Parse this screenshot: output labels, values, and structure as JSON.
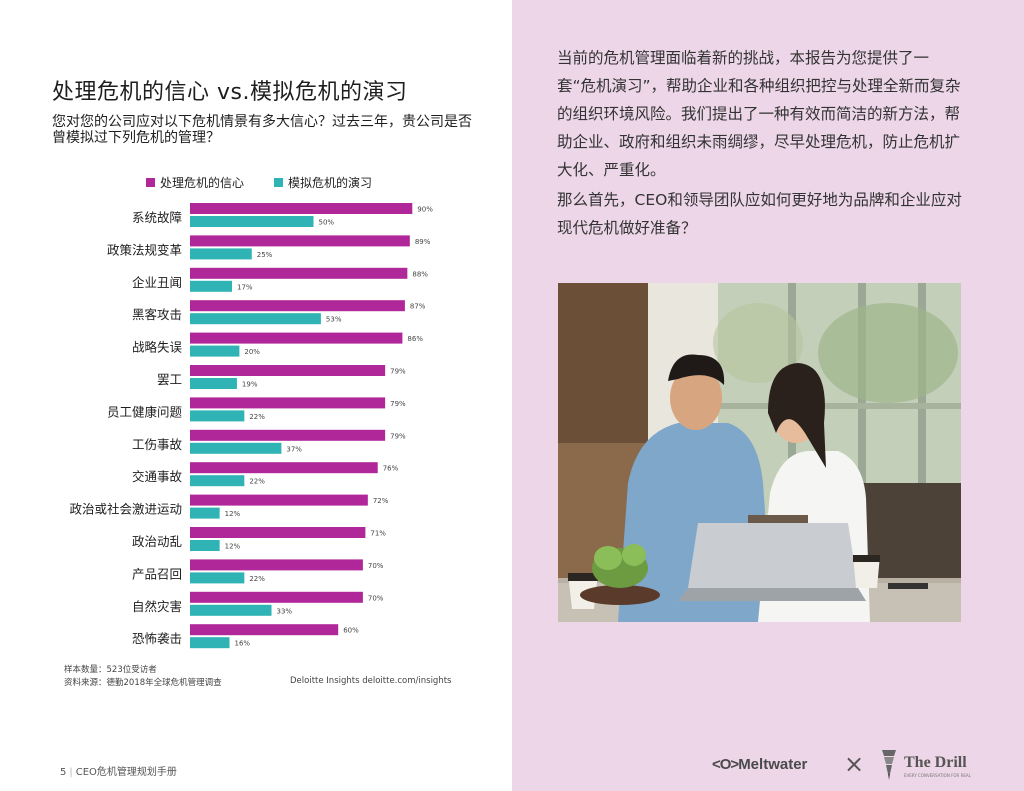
{
  "left_page": {
    "title": "处理危机的信心 vs.模拟危机的演习",
    "subtitle": "您对您的公司应对以下危机情景有多大信心？过去三年，贵公司是否曾模拟过下列危机的管理？",
    "sample_note": "样本数量：523位受访者",
    "source_note": "资料来源：德勤2018年全球危机管理调查",
    "source_right": "Deloitte Insights  deloitte.com/insights",
    "page_number": "5",
    "page_title": "CEO危机管理规划手册"
  },
  "right_page": {
    "paragraph1": "当前的危机管理面临着新的挑战，本报告为您提供了一套“危机演习”，帮助企业和各种组织把控与处理全新而复杂的组织环境风险。我们提出了一种有效而简洁的新方法，帮助企业、政府和组织未雨绸缪，尽早处理危机，防止危机扩大化、严重化。",
    "paragraph2": "那么首先，CEO和领导团队应如何更好地为品牌和企业应对现代危机做好准备？",
    "logo_meltwater": "Meltwater",
    "logo_times": "×",
    "logo_drill": "The Drill",
    "logo_drill_sub": "EVERY CONVERSATION FOR REAL"
  },
  "colors": {
    "series1": "#b0279a",
    "series2": "#2fb3b5",
    "right_bg": "#ecd6e8"
  },
  "chart_data": {
    "type": "bar",
    "orientation": "horizontal",
    "categories": [
      "系统故障",
      "政策法规变革",
      "企业丑闻",
      "黑客攻击",
      "战略失误",
      "罢工",
      "员工健康问题",
      "工伤事故",
      "交通事故",
      "政治或社会激进运动",
      "政治动乱",
      "产品召回",
      "自然灾害",
      "恐怖袭击"
    ],
    "series": [
      {
        "name": "处理危机的信心",
        "color": "#b0279a",
        "values": [
          90,
          89,
          88,
          87,
          86,
          79,
          79,
          79,
          76,
          72,
          71,
          70,
          70,
          60
        ]
      },
      {
        "name": "模拟危机的演习",
        "color": "#2fb3b5",
        "values": [
          50,
          25,
          17,
          53,
          20,
          19,
          22,
          37,
          22,
          12,
          12,
          22,
          33,
          16
        ]
      }
    ],
    "value_suffix": "%",
    "legend_position": "top-left",
    "xlim": [
      0,
      100
    ]
  }
}
